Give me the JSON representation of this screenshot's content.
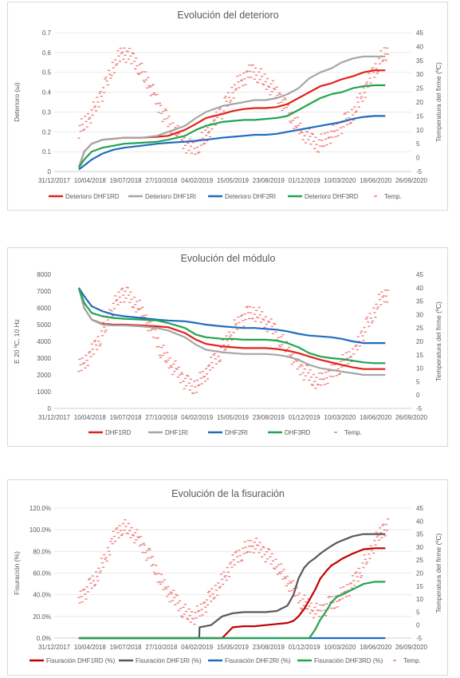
{
  "chart_data": [
    {
      "type": "line",
      "title": "Evolución del deterioro",
      "ylabel": "Deterioro (ω)",
      "y2label": "Temperatura del firme (ºC)",
      "ylim": [
        0,
        0.7
      ],
      "yticks": [
        "0",
        "0.1",
        "0.2",
        "0.3",
        "0.4",
        "0.5",
        "0.6",
        "0.7"
      ],
      "y2lim": [
        -5,
        45
      ],
      "y2ticks": [
        "-5",
        "0",
        "5",
        "10",
        "15",
        "20",
        "25",
        "30",
        "35",
        "40",
        "45"
      ],
      "xticks": [
        "31/12/2017",
        "10/04/2018",
        "19/07/2018",
        "27/10/2018",
        "04/02/2019",
        "15/05/2019",
        "23/08/2019",
        "01/12/2019",
        "10/03/2020",
        "18/06/2020",
        "26/09/2020"
      ],
      "legend_position": "bottom",
      "grid": true,
      "x_dates": [
        "2018-03-10",
        "2018-03-25",
        "2018-04-15",
        "2018-05-15",
        "2018-06-15",
        "2018-07-15",
        "2018-09-01",
        "2018-10-15",
        "2018-11-15",
        "2019-01-01",
        "2019-02-01",
        "2019-03-01",
        "2019-04-15",
        "2019-05-15",
        "2019-06-15",
        "2019-07-15",
        "2019-08-15",
        "2019-09-15",
        "2019-10-15",
        "2019-11-15",
        "2019-12-15",
        "2020-01-15",
        "2020-02-15",
        "2020-03-15",
        "2020-04-15",
        "2020-05-15",
        "2020-06-15",
        "2020-07-15"
      ],
      "series": [
        {
          "name": "Deterioro DHF1RD",
          "color": "#e32119",
          "values": [
            0.02,
            0.1,
            0.14,
            0.16,
            0.165,
            0.17,
            0.17,
            0.175,
            0.18,
            0.21,
            0.24,
            0.27,
            0.29,
            0.305,
            0.315,
            0.32,
            0.32,
            0.325,
            0.34,
            0.37,
            0.4,
            0.43,
            0.445,
            0.465,
            0.48,
            0.5,
            0.51,
            0.51
          ]
        },
        {
          "name": "Deterioro DHF1RI",
          "color": "#a6a6a6",
          "values": [
            0.02,
            0.1,
            0.14,
            0.16,
            0.165,
            0.17,
            0.17,
            0.18,
            0.2,
            0.23,
            0.27,
            0.3,
            0.33,
            0.34,
            0.35,
            0.36,
            0.36,
            0.37,
            0.39,
            0.42,
            0.47,
            0.5,
            0.52,
            0.55,
            0.57,
            0.58,
            0.58,
            0.58
          ]
        },
        {
          "name": "Deterioro DHF2RI",
          "color": "#1f6cbf",
          "values": [
            0.01,
            0.03,
            0.06,
            0.09,
            0.11,
            0.12,
            0.13,
            0.14,
            0.145,
            0.15,
            0.155,
            0.16,
            0.17,
            0.175,
            0.18,
            0.185,
            0.185,
            0.19,
            0.2,
            0.21,
            0.22,
            0.23,
            0.24,
            0.25,
            0.265,
            0.275,
            0.28,
            0.28
          ]
        },
        {
          "name": "Deterioro DHF3RD",
          "color": "#21a44f",
          "values": [
            0.02,
            0.06,
            0.1,
            0.12,
            0.13,
            0.14,
            0.145,
            0.15,
            0.16,
            0.18,
            0.21,
            0.23,
            0.25,
            0.255,
            0.26,
            0.26,
            0.265,
            0.27,
            0.28,
            0.31,
            0.34,
            0.37,
            0.39,
            0.4,
            0.42,
            0.43,
            0.435,
            0.435
          ]
        }
      ],
      "temp_series": {
        "name": "Temp.",
        "color": "#f08080"
      }
    },
    {
      "type": "line",
      "title": "Evolución del módulo",
      "ylabel": "E 20 ºC, 10 Hz",
      "y2label": "Temperatura del firme (ºC)",
      "ylim": [
        0,
        8000
      ],
      "yticks": [
        "0",
        "1000",
        "2000",
        "3000",
        "4000",
        "5000",
        "6000",
        "7000",
        "8000"
      ],
      "y2lim": [
        -5,
        45
      ],
      "y2ticks": [
        "-5",
        "0",
        "5",
        "10",
        "15",
        "20",
        "25",
        "30",
        "35",
        "40",
        "45"
      ],
      "xticks": [
        "31/12/2017",
        "10/04/2018",
        "19/07/2018",
        "27/10/2018",
        "04/02/2019",
        "15/05/2019",
        "23/08/2019",
        "01/12/2019",
        "10/03/2020",
        "18/06/2020",
        "26/09/2020"
      ],
      "legend_position": "bottom",
      "grid": false,
      "x_dates": [
        "2018-03-10",
        "2018-03-25",
        "2018-04-15",
        "2018-05-15",
        "2018-06-15",
        "2018-07-15",
        "2018-09-01",
        "2018-10-15",
        "2018-11-15",
        "2019-01-01",
        "2019-02-01",
        "2019-03-01",
        "2019-04-15",
        "2019-05-15",
        "2019-06-15",
        "2019-07-15",
        "2019-08-15",
        "2019-09-15",
        "2019-10-15",
        "2019-11-15",
        "2019-12-15",
        "2020-01-15",
        "2020-02-15",
        "2020-03-15",
        "2020-04-15",
        "2020-05-15",
        "2020-06-15",
        "2020-07-15"
      ],
      "series": [
        {
          "name": "DHF1RD",
          "color": "#e32119",
          "values": [
            7200,
            6000,
            5300,
            5050,
            5000,
            5000,
            4950,
            4900,
            4850,
            4500,
            4100,
            3850,
            3700,
            3650,
            3600,
            3600,
            3600,
            3550,
            3450,
            3300,
            3100,
            2900,
            2750,
            2600,
            2450,
            2350,
            2350,
            2350
          ]
        },
        {
          "name": "DHF1RI",
          "color": "#a6a6a6",
          "values": [
            7200,
            6000,
            5300,
            5000,
            4950,
            4950,
            4900,
            4800,
            4650,
            4250,
            3800,
            3500,
            3350,
            3300,
            3250,
            3250,
            3250,
            3200,
            3100,
            2900,
            2600,
            2400,
            2300,
            2200,
            2100,
            2000,
            2000,
            2000
          ]
        },
        {
          "name": "DHF2RI",
          "color": "#1f6cbf",
          "values": [
            7200,
            6700,
            6100,
            5800,
            5600,
            5500,
            5400,
            5300,
            5250,
            5200,
            5100,
            5000,
            4900,
            4850,
            4800,
            4800,
            4750,
            4700,
            4600,
            4450,
            4350,
            4300,
            4250,
            4150,
            4000,
            3900,
            3900,
            3900
          ]
        },
        {
          "name": "DHF3RD",
          "color": "#21a44f",
          "values": [
            7200,
            6300,
            5700,
            5500,
            5400,
            5350,
            5300,
            5250,
            5100,
            4800,
            4400,
            4250,
            4150,
            4150,
            4100,
            4100,
            4100,
            4050,
            3900,
            3650,
            3300,
            3100,
            3000,
            2950,
            2850,
            2750,
            2700,
            2700
          ]
        }
      ],
      "temp_series": {
        "name": "Temp.",
        "color": "#f08080"
      }
    },
    {
      "type": "line",
      "title": "Evolución de la fisuración",
      "ylabel": "Fisuración (%)",
      "y2label": "Temperatura del firme (ºC)",
      "ylim": [
        0,
        120
      ],
      "yticks": [
        "0.0%",
        "20.0%",
        "40.0%",
        "60.0%",
        "80.0%",
        "100.0%",
        "120.0%"
      ],
      "y2lim": [
        -5,
        45
      ],
      "y2ticks": [
        "-5",
        "0",
        "5",
        "10",
        "15",
        "20",
        "25",
        "30",
        "35",
        "40",
        "45"
      ],
      "xticks": [
        "31/12/2017",
        "10/04/2018",
        "19/07/2018",
        "27/10/2018",
        "04/02/2019",
        "15/05/2019",
        "23/08/2019",
        "01/12/2019",
        "10/03/2020",
        "18/06/2020",
        "26/09/2020"
      ],
      "legend_position": "bottom",
      "grid": true,
      "x_dates": [
        "2018-03-10",
        "2019-01-15",
        "2019-02-10",
        "2019-02-11",
        "2019-03-15",
        "2019-04-15",
        "2019-05-15",
        "2019-06-15",
        "2019-07-15",
        "2019-08-15",
        "2019-09-15",
        "2019-10-15",
        "2019-11-01",
        "2019-11-15",
        "2019-12-01",
        "2019-12-15",
        "2020-01-01",
        "2020-01-15",
        "2020-02-01",
        "2020-02-15",
        "2020-03-01",
        "2020-03-15",
        "2020-04-15",
        "2020-05-15",
        "2020-06-15",
        "2020-07-15"
      ],
      "series": [
        {
          "name": "Fisuración  DHF1RD (%)",
          "color": "#c00000",
          "values": [
            0,
            0,
            0,
            0,
            0,
            0,
            10,
            11,
            11,
            12,
            13,
            14,
            16,
            20,
            27,
            35,
            45,
            55,
            62,
            67,
            70,
            73,
            78,
            82,
            83,
            83
          ]
        },
        {
          "name": "Fisuración  DHF1RI (%)",
          "color": "#595959",
          "values": [
            0,
            0,
            0,
            10,
            12,
            20,
            23,
            24,
            24,
            24,
            25,
            30,
            40,
            55,
            65,
            70,
            74,
            78,
            82,
            85,
            88,
            90,
            94,
            96,
            96,
            96
          ]
        },
        {
          "name": "Fisuración  DHF2RI (%)",
          "color": "#1f6cbf",
          "values": [
            0,
            0,
            0,
            0,
            0,
            0,
            0,
            0,
            0,
            0,
            0,
            0,
            0,
            0,
            0,
            0,
            0,
            0,
            0,
            0,
            0,
            0,
            0,
            0,
            0,
            0
          ]
        },
        {
          "name": "Fisuración  DHF3RD (%)",
          "color": "#21a44f",
          "values": [
            0,
            0,
            0,
            0,
            0,
            0,
            0,
            0,
            0,
            0,
            0,
            0,
            0,
            0,
            0,
            0,
            8,
            17,
            25,
            33,
            38,
            40,
            45,
            50,
            52,
            52
          ]
        }
      ],
      "temp_series": {
        "name": "Temp.",
        "color": "#f08080"
      }
    }
  ],
  "temperature": {
    "dates": [
      "2018-03-10",
      "2018-03-25",
      "2018-04-10",
      "2018-04-25",
      "2018-05-10",
      "2018-05-25",
      "2018-06-10",
      "2018-06-25",
      "2018-07-10",
      "2018-07-25",
      "2018-08-10",
      "2018-08-25",
      "2018-09-10",
      "2018-09-25",
      "2018-10-10",
      "2018-10-25",
      "2018-11-10",
      "2018-11-25",
      "2018-12-10",
      "2018-12-25",
      "2019-01-10",
      "2019-01-25",
      "2019-02-10",
      "2019-02-25",
      "2019-03-10",
      "2019-03-25",
      "2019-04-10",
      "2019-04-25",
      "2019-05-10",
      "2019-05-25",
      "2019-06-10",
      "2019-06-25",
      "2019-07-10",
      "2019-07-25",
      "2019-08-10",
      "2019-08-25",
      "2019-09-10",
      "2019-09-25",
      "2019-10-10",
      "2019-10-25",
      "2019-11-10",
      "2019-11-25",
      "2019-12-10",
      "2019-12-25",
      "2020-01-10",
      "2020-01-25",
      "2020-02-10",
      "2020-02-25",
      "2020-03-10",
      "2020-03-25",
      "2020-04-10",
      "2020-04-25",
      "2020-05-10",
      "2020-05-25",
      "2020-06-10",
      "2020-06-25",
      "2020-07-10",
      "2020-07-25"
    ],
    "values_c": [
      10,
      12,
      15,
      18,
      22,
      26,
      32,
      35,
      38,
      37,
      35,
      33,
      29,
      26,
      22,
      17,
      14,
      11,
      9,
      6,
      4,
      3,
      5,
      7,
      10,
      13,
      16,
      19,
      23,
      26,
      28,
      30,
      31,
      30,
      28,
      26,
      24,
      21,
      18,
      15,
      12,
      9,
      8,
      6,
      5,
      6,
      8,
      9,
      11,
      13,
      15,
      18,
      22,
      26,
      30,
      34,
      37,
      38
    ]
  },
  "legend_symbol": {
    "temp_marker": "-"
  }
}
